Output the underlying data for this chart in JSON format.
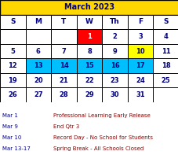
{
  "title": "March 2023",
  "title_bg": "#FFD700",
  "title_color": "#000080",
  "header_days": [
    "S",
    "M",
    "T",
    "W",
    "Th",
    "F",
    "S"
  ],
  "weeks": [
    [
      "",
      "",
      "",
      "1",
      "2",
      "3",
      "4"
    ],
    [
      "5",
      "6",
      "7",
      "8",
      "9",
      "10",
      "11"
    ],
    [
      "12",
      "13",
      "14",
      "15",
      "16",
      "17",
      "18"
    ],
    [
      "19",
      "20",
      "21",
      "22",
      "23",
      "24",
      "25"
    ],
    [
      "26",
      "27",
      "28",
      "29",
      "30",
      "31",
      ""
    ]
  ],
  "cell_colors": {
    "0-3": "#FF0000",
    "1-5": "#FFFF00",
    "2-1": "#00BFFF",
    "2-2": "#00BFFF",
    "2-3": "#00BFFF",
    "2-4": "#00BFFF",
    "2-5": "#00BFFF"
  },
  "text_colors": {
    "0-3": "#FFFFFF",
    "1-5": "#000080",
    "2-1": "#000080",
    "2-2": "#000080",
    "2-3": "#000080",
    "2-4": "#000080",
    "2-5": "#000080"
  },
  "default_text_color": "#000080",
  "border_color": "#000000",
  "header_text_color": "#000080",
  "notes": [
    [
      "Mar 1",
      "Professional Learning Early Release"
    ],
    [
      "Mar 9",
      "End Qtr 3"
    ],
    [
      "Mar 10",
      "Record Day - No School for Students"
    ],
    [
      "Mar 13-17",
      "Spring Break - All Schools Closed"
    ]
  ],
  "notes_left_color": "#00008B",
  "notes_right_color": "#8B0000"
}
